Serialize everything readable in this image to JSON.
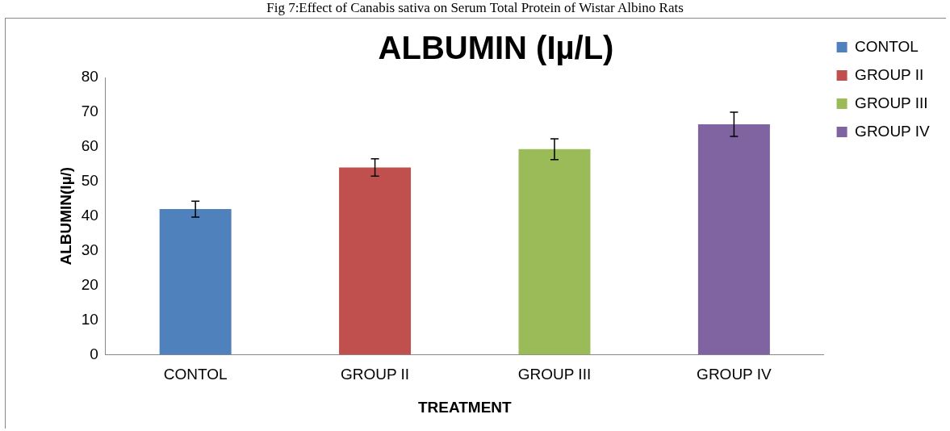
{
  "chart_data": {
    "type": "bar",
    "title": "ALBUMIN (Iµ/L)",
    "xlabel": "TREATMENT",
    "ylabel": "ALBUMIN(Iµ/)",
    "annotations": [
      "Fig 7:Effect of Canabis sativa on Serum Total Protein of Wistar Albino Rats"
    ],
    "categories": [
      "CONTOL",
      "GROUP II",
      "GROUP III",
      "GROUP IV"
    ],
    "series": [
      {
        "name": "CONTOL",
        "color": "#4f81bd",
        "values": [
          42,
          null,
          null,
          null
        ],
        "errors": [
          2.3,
          null,
          null,
          null
        ]
      },
      {
        "name": "GROUP II",
        "color": "#c0504d",
        "values": [
          null,
          54,
          null,
          null
        ],
        "errors": [
          null,
          2.5,
          null,
          null
        ]
      },
      {
        "name": "GROUP III",
        "color": "#9bbb59",
        "values": [
          null,
          null,
          59.3,
          null
        ],
        "errors": [
          null,
          null,
          3,
          null
        ]
      },
      {
        "name": "GROUP IV",
        "color": "#8064a2",
        "values": [
          null,
          null,
          null,
          66.5
        ],
        "errors": [
          null,
          null,
          null,
          3.5
        ]
      }
    ],
    "ylim": [
      0,
      80
    ],
    "yticks": [
      0,
      10,
      20,
      30,
      40,
      50,
      60,
      70,
      80
    ],
    "grid": false,
    "legend": "right"
  }
}
